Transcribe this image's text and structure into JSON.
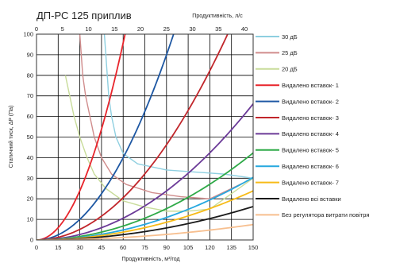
{
  "chart_data": {
    "type": "line",
    "title": "ДП-РС 125 приплив",
    "xlabel": "Продуктивність, м³/год",
    "x2label": "Продуктивність, л/с",
    "ylabel": "Статичний тиск, ΔP (Па)",
    "xlim": [
      0,
      150
    ],
    "ylim": [
      0,
      100
    ],
    "x2lim": [
      0,
      41.67
    ],
    "xticks": [
      "0",
      "15",
      "30",
      "45",
      "60",
      "75",
      "90",
      "105",
      "120",
      "135",
      "150"
    ],
    "x2ticks": [
      "0",
      "5",
      "10",
      "15",
      "20",
      "25",
      "30",
      "35",
      "40"
    ],
    "yticks": [
      "0",
      "10",
      "20",
      "30",
      "40",
      "50",
      "60",
      "70",
      "80",
      "90",
      "100"
    ],
    "grid": true,
    "legend_position": "right",
    "series": [
      {
        "name": "30 дБ",
        "color": "#8ecfe0",
        "kind": "noise",
        "points": [
          [
            47,
            100
          ],
          [
            48,
            90
          ],
          [
            49,
            80
          ],
          [
            50,
            70
          ],
          [
            52,
            60
          ],
          [
            55,
            50
          ],
          [
            60,
            42
          ],
          [
            70,
            37
          ],
          [
            90,
            34
          ],
          [
            110,
            33
          ],
          [
            130,
            32
          ],
          [
            150,
            30
          ]
        ]
      },
      {
        "name": "25 дБ",
        "color": "#d08c8c",
        "kind": "noise",
        "points": [
          [
            30,
            100
          ],
          [
            31,
            90
          ],
          [
            32,
            80
          ],
          [
            34,
            70
          ],
          [
            37,
            60
          ],
          [
            40,
            50
          ],
          [
            45,
            40
          ],
          [
            52,
            32
          ],
          [
            62,
            27
          ],
          [
            80,
            23
          ],
          [
            100,
            21
          ],
          [
            120,
            20
          ],
          [
            150,
            30
          ]
        ]
      },
      {
        "name": "20 дБ",
        "color": "#c8dc9a",
        "kind": "noise",
        "points": [
          [
            20,
            80
          ],
          [
            23,
            70
          ],
          [
            26,
            60
          ],
          [
            30,
            50
          ],
          [
            35,
            40
          ],
          [
            40,
            32
          ],
          [
            48,
            25
          ],
          [
            60,
            19
          ],
          [
            75,
            16
          ],
          [
            90,
            14
          ],
          [
            105,
            14
          ],
          [
            120,
            15
          ],
          [
            150,
            30
          ]
        ]
      },
      {
        "name": "Видалено вставок- 1",
        "color": "#e8242b",
        "k": 0.0266
      },
      {
        "name": "Видалено вставок- 2",
        "color": "#1d57a3",
        "k": 0.0111
      },
      {
        "name": "Видалено вставок- 3",
        "color": "#c1262b",
        "k": 0.00571
      },
      {
        "name": "Видалено вставок- 4",
        "color": "#6b3a98",
        "k": 0.00294
      },
      {
        "name": "Видалено вставок- 5",
        "color": "#2faa48",
        "k": 0.00188
      },
      {
        "name": "Видалено вставок- 6",
        "color": "#26a8df",
        "k": 0.00135
      },
      {
        "name": "Видалено вставок- 7",
        "color": "#f7bb17",
        "k": 0.00106
      },
      {
        "name": "Видалено всі вставки",
        "color": "#1a1a1a",
        "k": 0.000722
      },
      {
        "name": "Без регулятора витрати повітря",
        "color": "#f7bf8f",
        "k": 0.000333
      }
    ]
  }
}
